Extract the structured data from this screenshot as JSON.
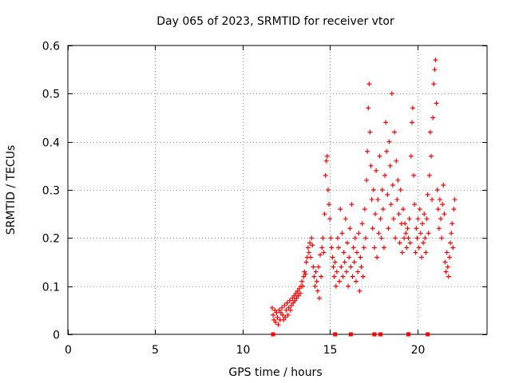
{
  "chart_data": {
    "type": "scatter",
    "title": "Day 065 of 2023, SRMTID for receiver vtor",
    "xlabel": "GPS time / hours",
    "ylabel": "SRMTID / TECUs",
    "xlim": [
      0,
      24
    ],
    "ylim": [
      0,
      0.6
    ],
    "xticks": [
      0,
      5,
      10,
      15,
      20
    ],
    "yticks": [
      0,
      0.1,
      0.2,
      0.3,
      0.4,
      0.5,
      0.6
    ],
    "ytick_labels": [
      "0",
      "0.1",
      "0.2",
      "0.3",
      "0.4",
      "0.5",
      "0.6"
    ],
    "grid": true,
    "marker": "+",
    "color": "#ff0000",
    "series": [
      {
        "name": "SRMTID",
        "points": [
          [
            11.7,
            0.055
          ],
          [
            11.75,
            0.04
          ],
          [
            11.8,
            0.03
          ],
          [
            11.85,
            0.05
          ],
          [
            11.9,
            0.025
          ],
          [
            11.95,
            0.045
          ],
          [
            12.0,
            0.035
          ],
          [
            12.05,
            0.02
          ],
          [
            12.1,
            0.05
          ],
          [
            12.15,
            0.03
          ],
          [
            12.2,
            0.045
          ],
          [
            12.25,
            0.055
          ],
          [
            12.3,
            0.04
          ],
          [
            12.35,
            0.03
          ],
          [
            12.4,
            0.06
          ],
          [
            12.45,
            0.035
          ],
          [
            12.5,
            0.05
          ],
          [
            12.55,
            0.065
          ],
          [
            12.6,
            0.04
          ],
          [
            12.65,
            0.055
          ],
          [
            12.7,
            0.07
          ],
          [
            12.75,
            0.05
          ],
          [
            12.8,
            0.06
          ],
          [
            12.85,
            0.075
          ],
          [
            12.9,
            0.065
          ],
          [
            12.95,
            0.08
          ],
          [
            13.0,
            0.07
          ],
          [
            13.05,
            0.085
          ],
          [
            13.1,
            0.075
          ],
          [
            13.15,
            0.09
          ],
          [
            13.2,
            0.08
          ],
          [
            13.25,
            0.095
          ],
          [
            13.3,
            0.085
          ],
          [
            13.35,
            0.1
          ],
          [
            13.4,
            0.11
          ],
          [
            13.45,
            0.1
          ],
          [
            13.5,
            0.12
          ],
          [
            13.55,
            0.13
          ],
          [
            13.6,
            0.125
          ],
          [
            13.65,
            0.15
          ],
          [
            13.7,
            0.16
          ],
          [
            13.75,
            0.18
          ],
          [
            13.8,
            0.17
          ],
          [
            13.85,
            0.19
          ],
          [
            13.9,
            0.16
          ],
          [
            13.95,
            0.2
          ],
          [
            14.0,
            0.185
          ],
          [
            14.05,
            0.14
          ],
          [
            14.1,
            0.12
          ],
          [
            14.15,
            0.1
          ],
          [
            14.2,
            0.13
          ],
          [
            14.25,
            0.11
          ],
          [
            14.3,
            0.09
          ],
          [
            14.35,
            0.14
          ],
          [
            14.4,
            0.075
          ],
          [
            14.45,
            0.165
          ],
          [
            14.5,
            0.12
          ],
          [
            14.55,
            0.18
          ],
          [
            14.6,
            0.2
          ],
          [
            14.65,
            0.17
          ],
          [
            14.7,
            0.25
          ],
          [
            14.75,
            0.33
          ],
          [
            14.8,
            0.36
          ],
          [
            14.85,
            0.37
          ],
          [
            14.9,
            0.3
          ],
          [
            14.95,
            0.27
          ],
          [
            15.0,
            0.24
          ],
          [
            15.05,
            0.2
          ],
          [
            15.1,
            0.18
          ],
          [
            15.15,
            0.16
          ],
          [
            15.2,
            0.14
          ],
          [
            15.25,
            0.12
          ],
          [
            15.3,
            0.15
          ],
          [
            15.35,
            0.1
          ],
          [
            15.4,
            0.13
          ],
          [
            15.45,
            0.2
          ],
          [
            15.5,
            0.18
          ],
          [
            15.55,
            0.11
          ],
          [
            15.6,
            0.26
          ],
          [
            15.65,
            0.14
          ],
          [
            15.7,
            0.21
          ],
          [
            15.75,
            0.12
          ],
          [
            15.8,
            0.17
          ],
          [
            15.85,
            0.15
          ],
          [
            15.9,
            0.24
          ],
          [
            15.95,
            0.13
          ],
          [
            16.0,
            0.19
          ],
          [
            16.05,
            0.1
          ],
          [
            16.1,
            0.16
          ],
          [
            16.15,
            0.22
          ],
          [
            16.2,
            0.14
          ],
          [
            16.25,
            0.27
          ],
          [
            16.3,
            0.12
          ],
          [
            16.35,
            0.18
          ],
          [
            16.4,
            0.15
          ],
          [
            16.45,
            0.2
          ],
          [
            16.5,
            0.11
          ],
          [
            16.55,
            0.17
          ],
          [
            16.6,
            0.13
          ],
          [
            16.65,
            0.21
          ],
          [
            16.7,
            0.09
          ],
          [
            16.75,
            0.16
          ],
          [
            16.8,
            0.14
          ],
          [
            16.85,
            0.23
          ],
          [
            16.9,
            0.12
          ],
          [
            16.95,
            0.18
          ],
          [
            17.0,
            0.26
          ],
          [
            17.05,
            0.2
          ],
          [
            17.1,
            0.32
          ],
          [
            17.15,
            0.38
          ],
          [
            17.2,
            0.47
          ],
          [
            17.25,
            0.52
          ],
          [
            17.3,
            0.42
          ],
          [
            17.35,
            0.35
          ],
          [
            17.4,
            0.28
          ],
          [
            17.45,
            0.22
          ],
          [
            17.5,
            0.3
          ],
          [
            17.55,
            0.18
          ],
          [
            17.6,
            0.25
          ],
          [
            17.65,
            0.34
          ],
          [
            17.7,
            0.16
          ],
          [
            17.75,
            0.28
          ],
          [
            17.8,
            0.21
          ],
          [
            17.85,
            0.37
          ],
          [
            17.9,
            0.24
          ],
          [
            17.95,
            0.2
          ],
          [
            18.0,
            0.3
          ],
          [
            18.05,
            0.26
          ],
          [
            18.1,
            0.18
          ],
          [
            18.15,
            0.33
          ],
          [
            18.2,
            0.44
          ],
          [
            18.25,
            0.38
          ],
          [
            18.3,
            0.29
          ],
          [
            18.35,
            0.22
          ],
          [
            18.4,
            0.4
          ],
          [
            18.45,
            0.35
          ],
          [
            18.5,
            0.27
          ],
          [
            18.55,
            0.5
          ],
          [
            18.6,
            0.31
          ],
          [
            18.65,
            0.24
          ],
          [
            18.7,
            0.42
          ],
          [
            18.75,
            0.2
          ],
          [
            18.8,
            0.36
          ],
          [
            18.85,
            0.28
          ],
          [
            18.9,
            0.32
          ],
          [
            18.95,
            0.25
          ],
          [
            19.0,
            0.19
          ],
          [
            19.05,
            0.3
          ],
          [
            19.1,
            0.23
          ],
          [
            19.15,
            0.17
          ],
          [
            19.2,
            0.26
          ],
          [
            19.25,
            0.2
          ],
          [
            19.3,
            0.23
          ],
          [
            19.35,
            0.21
          ],
          [
            19.4,
            0.18
          ],
          [
            19.45,
            0.22
          ],
          [
            19.5,
            0.2
          ],
          [
            19.55,
            0.24
          ],
          [
            19.6,
            0.19
          ],
          [
            19.65,
            0.37
          ],
          [
            19.7,
            0.44
          ],
          [
            19.75,
            0.47
          ],
          [
            19.8,
            0.33
          ],
          [
            19.85,
            0.27
          ],
          [
            19.9,
            0.17
          ],
          [
            19.95,
            0.22
          ],
          [
            20.0,
            0.2
          ],
          [
            20.05,
            0.24
          ],
          [
            20.1,
            0.18
          ],
          [
            20.15,
            0.26
          ],
          [
            20.2,
            0.21
          ],
          [
            20.25,
            0.16
          ],
          [
            20.3,
            0.23
          ],
          [
            20.35,
            0.19
          ],
          [
            20.4,
            0.25
          ],
          [
            20.45,
            0.2
          ],
          [
            20.5,
            0.17
          ],
          [
            20.55,
            0.24
          ],
          [
            20.6,
            0.29
          ],
          [
            20.65,
            0.21
          ],
          [
            20.7,
            0.33
          ],
          [
            20.75,
            0.42
          ],
          [
            20.8,
            0.37
          ],
          [
            20.85,
            0.28
          ],
          [
            20.9,
            0.45
          ],
          [
            20.95,
            0.52
          ],
          [
            21.0,
            0.55
          ],
          [
            21.05,
            0.57
          ],
          [
            21.1,
            0.48
          ],
          [
            21.15,
            0.3
          ],
          [
            21.2,
            0.26
          ],
          [
            21.25,
            0.22
          ],
          [
            21.3,
            0.28
          ],
          [
            21.35,
            0.24
          ],
          [
            21.4,
            0.2
          ],
          [
            21.45,
            0.27
          ],
          [
            21.5,
            0.31
          ],
          [
            21.55,
            0.25
          ],
          [
            21.6,
            0.15
          ],
          [
            21.65,
            0.13
          ],
          [
            21.7,
            0.17
          ],
          [
            21.75,
            0.14
          ],
          [
            21.8,
            0.12
          ],
          [
            21.85,
            0.16
          ],
          [
            21.9,
            0.19
          ],
          [
            21.95,
            0.21
          ],
          [
            22.0,
            0.23
          ],
          [
            22.05,
            0.18
          ],
          [
            22.1,
            0.26
          ],
          [
            22.15,
            0.28
          ]
        ]
      }
    ],
    "zero_markers_x": [
      11.75,
      15.3,
      16.2,
      17.55,
      17.9,
      19.5,
      20.6
    ]
  }
}
